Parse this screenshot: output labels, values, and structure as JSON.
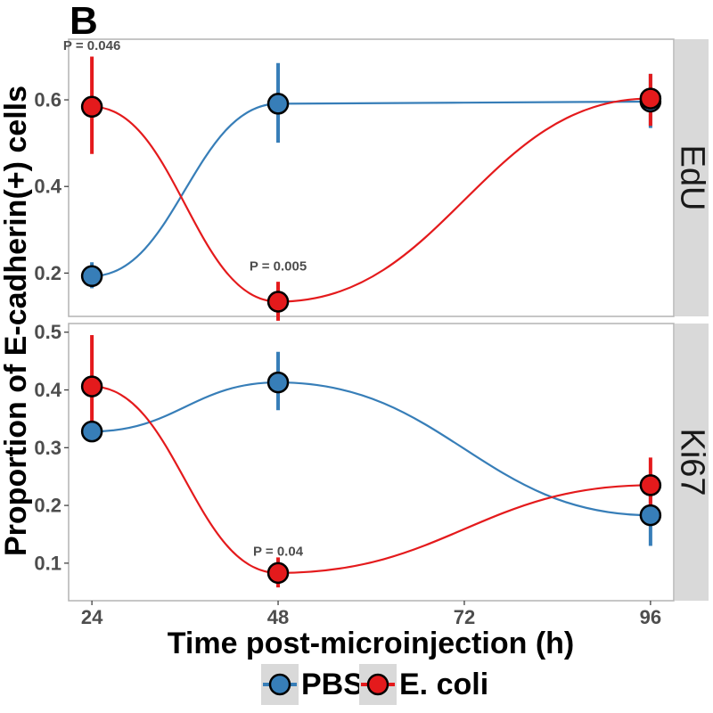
{
  "panel_tag": "B",
  "chart_data": {
    "type": "line",
    "xlabel": "Time post-microinjection (h)",
    "ylabel": "Proportion of E-cadherin(+) cells",
    "x_ticks": [
      24,
      48,
      72,
      96
    ],
    "xlim": [
      21,
      99
    ],
    "colors": {
      "PBS": "#377eb8",
      "E. coli": "#e41a1c"
    },
    "legend": {
      "position": "bottom",
      "entries": [
        "PBS",
        "E. coli"
      ]
    },
    "grid": false,
    "facets": [
      {
        "label": "EdU",
        "ylim": [
          0.1,
          0.74
        ],
        "y_ticks": [
          0.2,
          0.4,
          0.6
        ],
        "y_tick_labels": [
          "0.2",
          "0.4",
          "0.6"
        ],
        "series": [
          {
            "name": "PBS",
            "x": [
              24,
              48,
              96
            ],
            "y": [
              0.193,
              0.591,
              0.596
            ],
            "err_low": [
              0.165,
              0.501,
              0.535
            ],
            "err_high": [
              0.225,
              0.685,
              0.66
            ]
          },
          {
            "name": "E. coli",
            "x": [
              24,
              48,
              96
            ],
            "y": [
              0.584,
              0.134,
              0.603
            ],
            "err_low": [
              0.475,
              0.09,
              0.54
            ],
            "err_high": [
              0.7,
              0.18,
              0.66
            ]
          }
        ],
        "annotations": [
          {
            "text": "P =  0.046",
            "x": 24,
            "y": 0.725
          },
          {
            "text": "P =  0.005",
            "x": 48,
            "y": 0.215
          }
        ]
      },
      {
        "label": "Ki67",
        "ylim": [
          0.035,
          0.515
        ],
        "y_ticks": [
          0.1,
          0.2,
          0.3,
          0.4,
          0.5
        ],
        "y_tick_labels": [
          "0.1",
          "0.2",
          "0.3",
          "0.4",
          "0.5"
        ],
        "series": [
          {
            "name": "PBS",
            "x": [
              24,
              48,
              96
            ],
            "y": [
              0.328,
              0.413,
              0.183
            ],
            "err_low": [
              0.31,
              0.365,
              0.13
            ],
            "err_high": [
              0.345,
              0.466,
              0.24
            ]
          },
          {
            "name": "E. coli",
            "x": [
              24,
              48,
              96
            ],
            "y": [
              0.406,
              0.083,
              0.235
            ],
            "err_low": [
              0.315,
              0.058,
              0.19
            ],
            "err_high": [
              0.495,
              0.11,
              0.283
            ]
          }
        ],
        "annotations": [
          {
            "text": "P =  0.04",
            "x": 48,
            "y": 0.12
          }
        ]
      }
    ]
  }
}
